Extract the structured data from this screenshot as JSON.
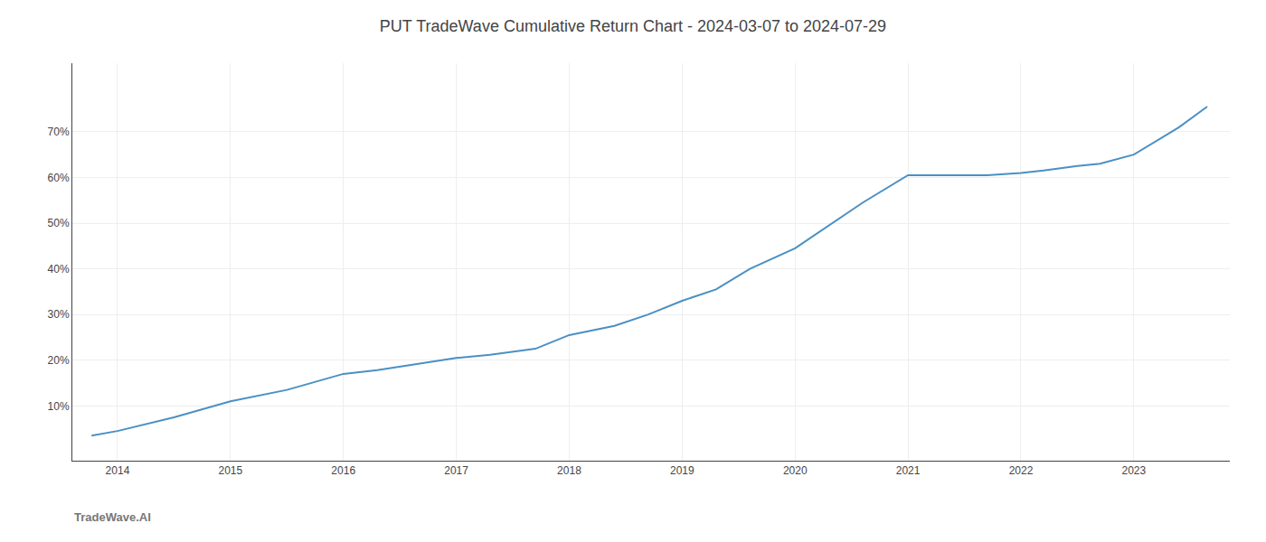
{
  "chart_data": {
    "type": "line",
    "title": "PUT TradeWave Cumulative Return Chart - 2024-03-07 to 2024-07-29",
    "annotations": [
      "TradeWave.AI"
    ],
    "color": "#4a90c4",
    "x": [
      2013.77,
      2014.0,
      2014.5,
      2015.0,
      2015.5,
      2016.0,
      2016.3,
      2016.6,
      2017.0,
      2017.3,
      2017.7,
      2018.0,
      2018.4,
      2018.7,
      2019.0,
      2019.3,
      2019.6,
      2020.0,
      2020.3,
      2020.6,
      2021.0,
      2021.1,
      2021.4,
      2021.7,
      2022.0,
      2022.2,
      2022.5,
      2022.7,
      2023.0,
      2023.4,
      2023.65
    ],
    "values": [
      3.5,
      4.5,
      7.5,
      11.0,
      13.5,
      17.0,
      17.8,
      19.0,
      20.5,
      21.2,
      22.5,
      25.5,
      27.5,
      30.0,
      33.0,
      35.5,
      40.0,
      44.5,
      49.5,
      54.5,
      60.5,
      60.5,
      60.5,
      60.5,
      61.0,
      61.5,
      62.5,
      63.0,
      65.0,
      71.0,
      75.5
    ],
    "xlim": [
      2013.6,
      2023.85
    ],
    "ylim": [
      -2,
      85
    ],
    "xticks": [
      2014,
      2015,
      2016,
      2017,
      2018,
      2019,
      2020,
      2021,
      2022,
      2023
    ],
    "yticks": [
      {
        "value": 10,
        "label": "10%"
      },
      {
        "value": 20,
        "label": "20%"
      },
      {
        "value": 30,
        "label": "30%"
      },
      {
        "value": 40,
        "label": "40%"
      },
      {
        "value": 50,
        "label": "50%"
      },
      {
        "value": 60,
        "label": "60%"
      },
      {
        "value": 70,
        "label": "70%"
      }
    ],
    "grid": true
  }
}
